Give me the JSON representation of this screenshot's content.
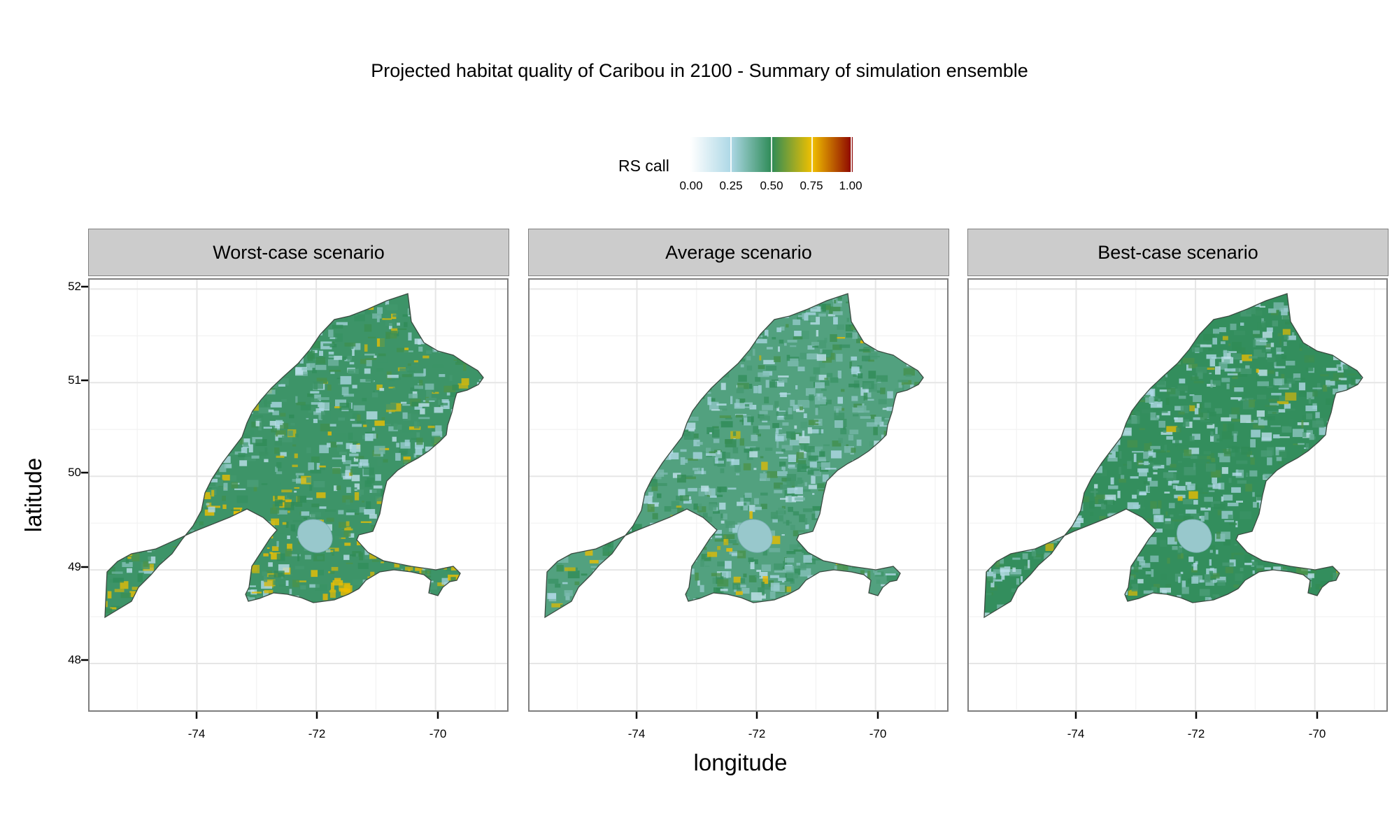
{
  "title": "Projected habitat quality of Caribou in 2100 - Summary of simulation ensemble",
  "legend": {
    "title": "RS call",
    "ticks": [
      "0.00",
      "0.25",
      "0.50",
      "0.75",
      "1.00"
    ],
    "colors": [
      "#ffffff",
      "#add8e6",
      "#2e8b57",
      "#f0c000",
      "#8b0000"
    ]
  },
  "chart_data": {
    "type": "heatmap",
    "title": "Projected habitat quality of Caribou in 2100 - Summary of simulation ensemble",
    "xlabel": "longitude",
    "ylabel": "latitude",
    "xlim": [
      -75.8,
      -68.8
    ],
    "ylim": [
      47.5,
      52.1
    ],
    "x_ticks": [
      "-74",
      "-72",
      "-70"
    ],
    "y_ticks": [
      "48",
      "49",
      "50",
      "51",
      "52"
    ],
    "color_scale": {
      "title": "RS call",
      "min": 0.0,
      "max": 1.0
    },
    "facets": [
      {
        "label": "Worst-case scenario",
        "mean_value": 0.47,
        "yellow_fraction": 0.12
      },
      {
        "label": "Average scenario",
        "mean_value": 0.43,
        "yellow_fraction": 0.02
      },
      {
        "label": "Best-case scenario",
        "mean_value": 0.49,
        "yellow_fraction": 0.02
      }
    ]
  }
}
